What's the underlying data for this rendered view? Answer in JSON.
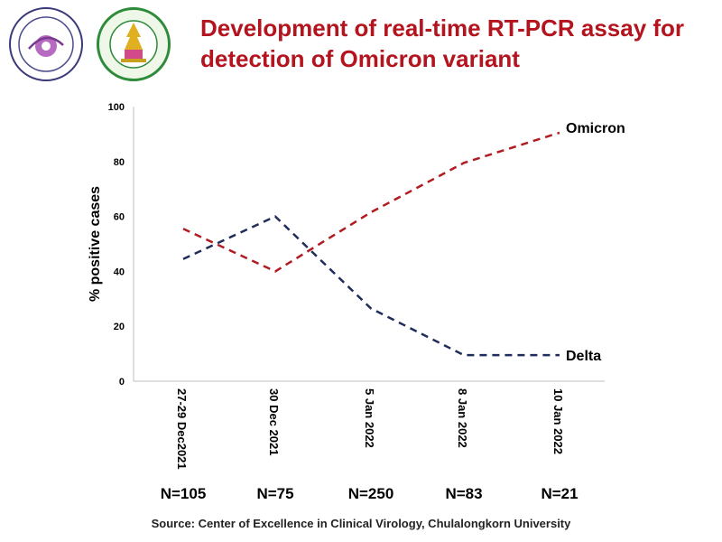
{
  "header": {
    "title_line1": "Development of real-time RT-PCR assay for",
    "title_line2": "detection of Omicron variant"
  },
  "chart_data": {
    "type": "line",
    "categories": [
      "27-29 Dec2021",
      "30 Dec 2021",
      "5 Jan 2022",
      "8 Jan 2022",
      "10 Jan 2022"
    ],
    "series": [
      {
        "name": "Omicron",
        "values": [
          55.5,
          40,
          61.5,
          79.5,
          90.5
        ],
        "color": "#b01c22",
        "style": "dashed"
      },
      {
        "name": "Delta",
        "values": [
          44.5,
          60,
          26.5,
          9.5,
          9.5
        ],
        "color": "#1f2d5a",
        "style": "dashed"
      }
    ],
    "ylabel": "% positive cases",
    "xlabel": "",
    "ylim": [
      0,
      100
    ],
    "yticks": [
      0,
      20,
      40,
      60,
      80,
      100
    ],
    "grid": false,
    "legend": "inline labels at line ends"
  },
  "sample_sizes": [
    "N=105",
    "N=75",
    "N=250",
    "N=83",
    "N=21"
  ],
  "footer": {
    "source": "Source: Center of Excellence in Clinical Virology, Chulalongkorn University"
  }
}
